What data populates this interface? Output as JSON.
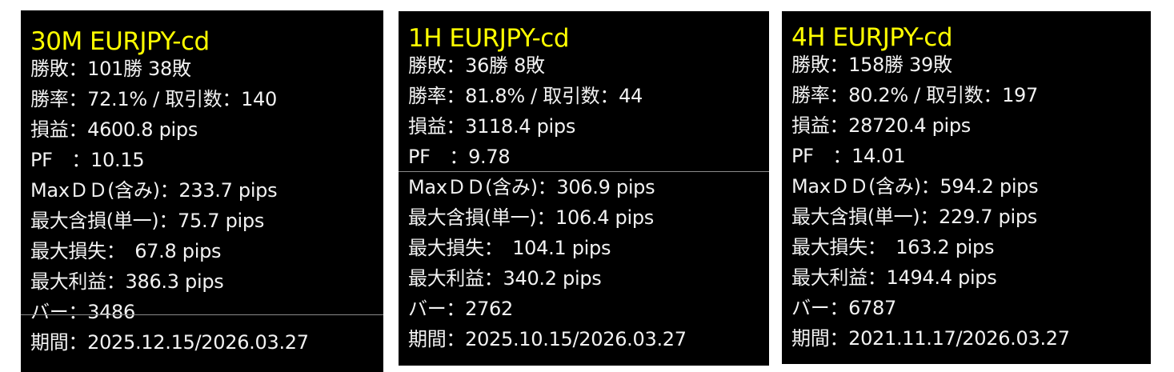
{
  "colors": {
    "title": "#ffff00",
    "text": "#f2f2f2",
    "background": "#000000"
  },
  "panels": [
    {
      "title": "30M EURJPY-cd",
      "rows": [
        "勝敗：101勝 38敗",
        "勝率：72.1%  /  取引数：140",
        "損益：4600.8 pips",
        "PF　：10.15",
        "MaxＤＤ(含み)：233.7 pips",
        "最大含損(単一)：75.7 pips",
        "最大損失：　67.8 pips",
        "最大利益：386.3 pips",
        "バー：3486",
        "期間：2025.12.15/2026.03.27"
      ]
    },
    {
      "title": "1H EURJPY-cd",
      "rows": [
        "勝敗：36勝 8敗",
        "勝率：81.8%  /  取引数：44",
        "損益：3118.4 pips",
        "PF　：9.78",
        "MaxＤＤ(含み)：306.9 pips",
        "最大含損(単一)：106.4 pips",
        "最大損失：　104.1 pips",
        "最大利益：340.2 pips",
        "バー：2762",
        "期間：2025.10.15/2026.03.27"
      ]
    },
    {
      "title": "4H EURJPY-cd",
      "rows": [
        "勝敗：158勝 39敗",
        "勝率：80.2%  /  取引数：197",
        "損益：28720.4 pips",
        "PF　：14.01",
        "MaxＤＤ(含み)：594.2 pips",
        "最大含損(単一)：229.7 pips",
        "最大損失：　163.2 pips",
        "最大利益：1494.4 pips",
        "バー：6787",
        "期間：2021.11.17/2026.03.27"
      ]
    }
  ]
}
